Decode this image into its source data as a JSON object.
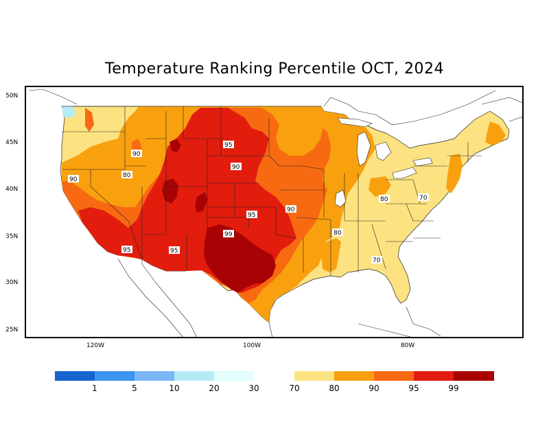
{
  "title": "Temperature Ranking Percentile OCT, 2024",
  "lat_labels": [
    "50N",
    "45N",
    "40N",
    "35N",
    "30N",
    "25N"
  ],
  "lon_labels": [
    "120W",
    "100W",
    "80W"
  ],
  "contour_labels": [
    "90",
    "95",
    "80",
    "90",
    "90",
    "95",
    "90",
    "80",
    "70",
    "95",
    "99",
    "95",
    "80",
    "70"
  ],
  "legend": {
    "cold": [
      {
        "color": "#1565d0",
        "label": "1"
      },
      {
        "color": "#3d93ef",
        "label": "5"
      },
      {
        "color": "#7bb7f6",
        "label": "10"
      },
      {
        "color": "#b4ecf6",
        "label": "20"
      },
      {
        "color": "#e1fdfd",
        "label": "30"
      }
    ],
    "warm": [
      {
        "color": "#fde281",
        "label": "70"
      },
      {
        "color": "#f9a00e",
        "label": "80"
      },
      {
        "color": "#f76a12",
        "label": "90"
      },
      {
        "color": "#e21d0e",
        "label": "95"
      },
      {
        "color": "#a80205",
        "label": "99"
      }
    ]
  },
  "colors": {
    "p70": "#fde281",
    "p80": "#f9a00e",
    "p90": "#f76a12",
    "p95": "#e21d0e",
    "p99": "#a80205",
    "p20": "#b4ecf6"
  }
}
